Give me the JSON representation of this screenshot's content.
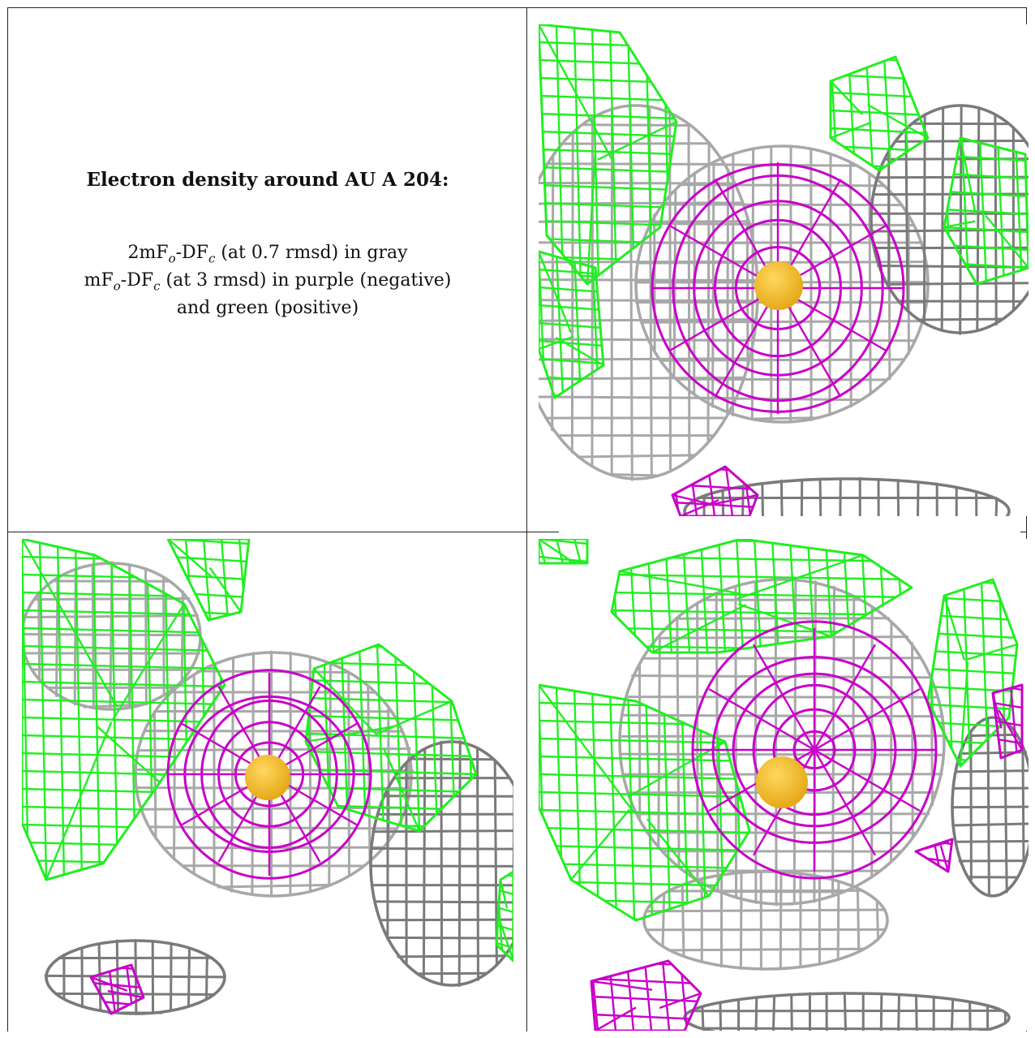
{
  "caption": {
    "title": "Electron density around AU A 204:",
    "line1_pre": "2mF",
    "line1_sub_o": "o",
    "line1_mid": "-DF",
    "line1_sub_c": "c",
    "line1_post": " (at 0.7 rmsd) in gray",
    "line2_pre": "mF",
    "line2_sub_o": "o",
    "line2_mid": "-DF",
    "line2_sub_c": "c",
    "line2_post": " (at 3 rmsd) in purple (negative)",
    "line3": "and green (positive)"
  },
  "colors": {
    "gray_mesh": "#a8a8a8",
    "gray_mesh_dark": "#7a7a7a",
    "purple_mesh": "#c800c8",
    "green_mesh": "#22ee22",
    "gold_atom": "#e6a817"
  },
  "panels": [
    {
      "id": "view-1",
      "atom": "AU A 204"
    },
    {
      "id": "view-2",
      "atom": "AU A 204"
    },
    {
      "id": "view-3",
      "atom": "AU A 204"
    }
  ]
}
